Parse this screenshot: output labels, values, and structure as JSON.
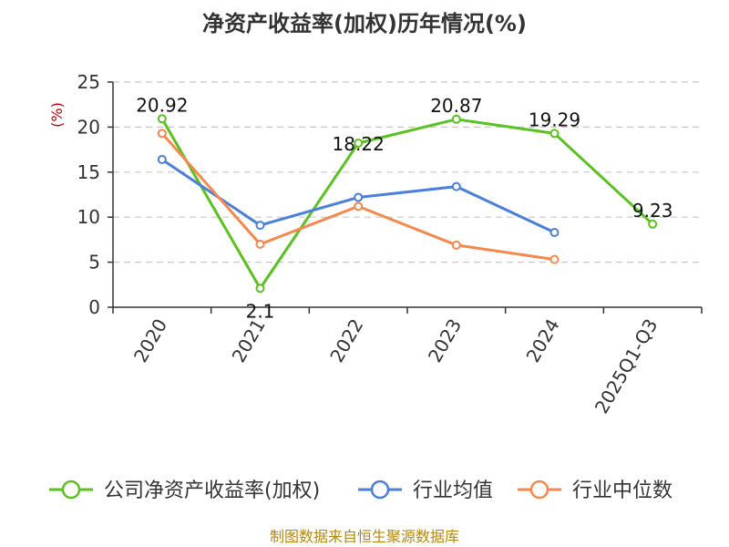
{
  "chart_data": {
    "type": "line",
    "title": "净资产收益率(加权)历年情况(%)",
    "ylabel": "(%)",
    "xlabel": "",
    "categories": [
      "2020",
      "2021",
      "2022",
      "2023",
      "2024",
      "2025Q1-Q3"
    ],
    "ylim": [
      0,
      25
    ],
    "yticks": [
      0,
      5,
      10,
      15,
      20,
      25
    ],
    "grid": true,
    "legend_position": "bottom",
    "series": [
      {
        "name": "公司净资产收益率(加权)",
        "color": "#5ac21f",
        "values": [
          20.92,
          2.1,
          18.22,
          20.87,
          19.29,
          9.23
        ],
        "labels": [
          "20.92",
          "2.1",
          "18.22",
          "20.87",
          "19.29",
          "9.23"
        ]
      },
      {
        "name": "行业均值",
        "color": "#4a7fdc",
        "values": [
          16.4,
          9.1,
          12.2,
          13.4,
          8.3,
          null
        ]
      },
      {
        "name": "行业中位数",
        "color": "#f4884f",
        "values": [
          19.3,
          7.0,
          11.2,
          6.9,
          5.3,
          null
        ]
      }
    ]
  },
  "footer": {
    "source": "制图数据来自恒生聚源数据库"
  }
}
